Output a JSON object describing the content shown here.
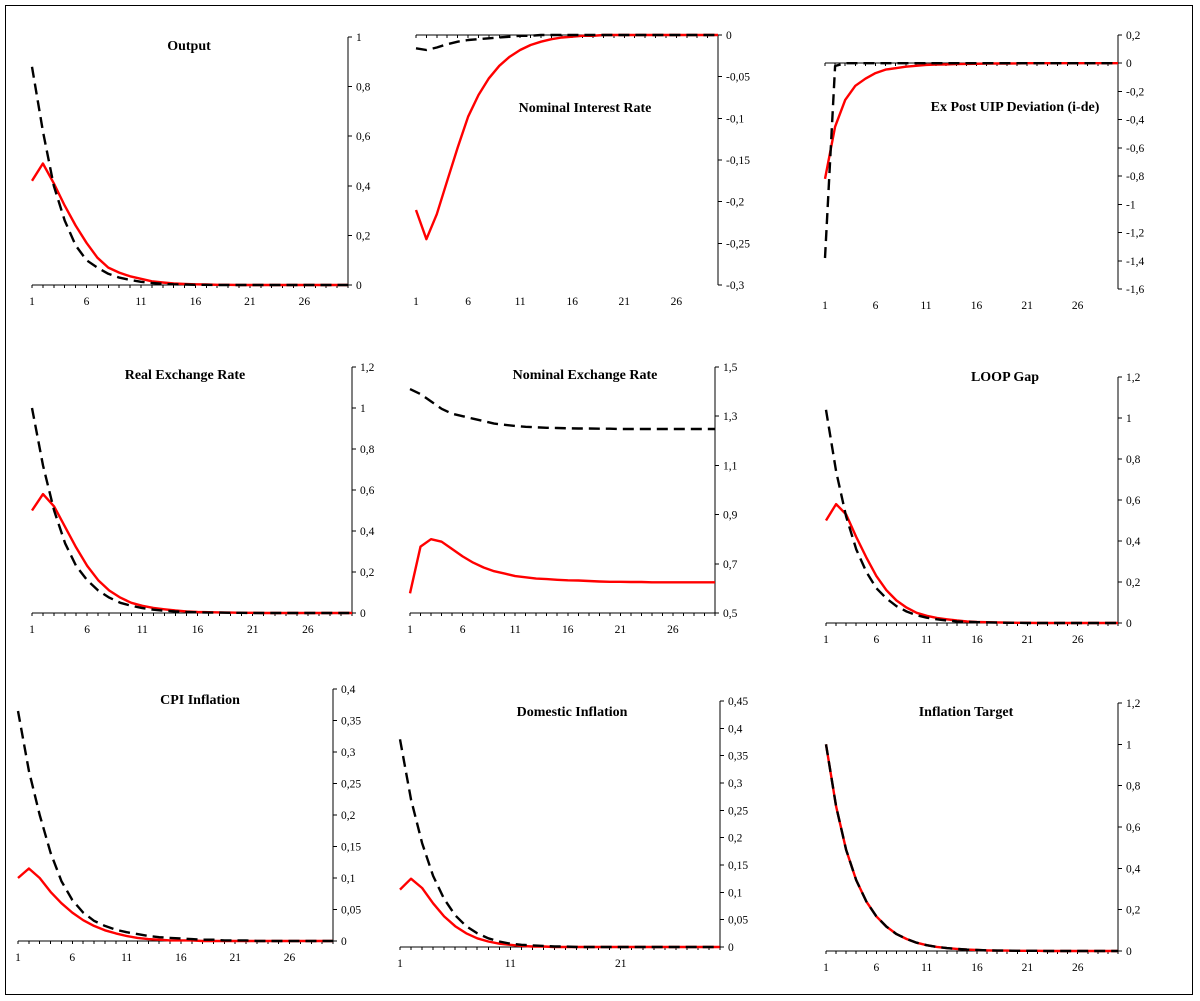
{
  "colors": {
    "series_a": "#ff0000",
    "series_b": "#000000"
  },
  "chart_data": [
    {
      "type": "line",
      "title": "Output",
      "x": [
        1,
        2,
        3,
        4,
        5,
        6,
        7,
        8,
        9,
        10,
        11,
        12,
        13,
        14,
        15,
        16,
        17,
        18,
        19,
        20,
        21,
        22,
        23,
        24,
        25,
        26,
        27,
        28,
        29,
        30
      ],
      "xticks": [
        1,
        6,
        11,
        16,
        21,
        26
      ],
      "ylim": [
        0,
        1
      ],
      "yticks": [
        "0",
        "0,2",
        "0,4",
        "0,6",
        "0,8",
        "1"
      ],
      "ytick_values": [
        0,
        0.2,
        0.4,
        0.6,
        0.8,
        1
      ],
      "series": [
        {
          "style": "solid",
          "color": "#ff0000",
          "values": [
            0.42,
            0.49,
            0.41,
            0.32,
            0.24,
            0.17,
            0.11,
            0.07,
            0.05,
            0.035,
            0.025,
            0.015,
            0.01,
            0.006,
            0.004,
            0.003,
            0.002,
            0.001,
            0.001,
            0,
            0,
            0,
            0,
            0,
            0,
            0,
            0,
            0,
            0,
            0
          ]
        },
        {
          "style": "dashed",
          "color": "#000000",
          "values": [
            0.88,
            0.62,
            0.4,
            0.26,
            0.16,
            0.1,
            0.07,
            0.045,
            0.03,
            0.02,
            0.013,
            0.008,
            0.005,
            0.003,
            0.002,
            0.001,
            0.001,
            0,
            0,
            0,
            0,
            0,
            0,
            0,
            0,
            0,
            0,
            0,
            0,
            0
          ]
        }
      ]
    },
    {
      "type": "line",
      "title": "Nominal Interest Rate",
      "x": [
        1,
        2,
        3,
        4,
        5,
        6,
        7,
        8,
        9,
        10,
        11,
        12,
        13,
        14,
        15,
        16,
        17,
        18,
        19,
        20,
        21,
        22,
        23,
        24,
        25,
        26,
        27,
        28,
        29,
        30
      ],
      "xticks": [
        1,
        6,
        11,
        16,
        21,
        26
      ],
      "ylim": [
        -0.3,
        0
      ],
      "yticks": [
        "-0,3",
        "-0,25",
        "-0,2",
        "-0,15",
        "-0,1",
        "-0,05",
        "0"
      ],
      "ytick_values": [
        -0.3,
        -0.25,
        -0.2,
        -0.15,
        -0.1,
        -0.05,
        0
      ],
      "series": [
        {
          "style": "solid",
          "color": "#ff0000",
          "values": [
            -0.21,
            -0.245,
            -0.215,
            -0.175,
            -0.135,
            -0.098,
            -0.072,
            -0.052,
            -0.037,
            -0.026,
            -0.018,
            -0.012,
            -0.008,
            -0.005,
            -0.003,
            -0.002,
            -0.001,
            -0.001,
            0,
            0,
            0,
            0,
            0,
            0,
            0,
            0,
            0,
            0,
            0,
            0
          ]
        },
        {
          "style": "dashed",
          "color": "#000000",
          "values": [
            -0.016,
            -0.018,
            -0.015,
            -0.011,
            -0.008,
            -0.006,
            -0.005,
            -0.004,
            -0.003,
            -0.002,
            -0.001,
            -0.001,
            0,
            0,
            0,
            0,
            0,
            0,
            0,
            0,
            0,
            0,
            0,
            0,
            0,
            0,
            0,
            0,
            0,
            0
          ]
        }
      ]
    },
    {
      "type": "line",
      "title": "Ex Post UIP Deviation (i-de)",
      "x": [
        1,
        2,
        3,
        4,
        5,
        6,
        7,
        8,
        9,
        10,
        11,
        12,
        13,
        14,
        15,
        16,
        17,
        18,
        19,
        20,
        21,
        22,
        23,
        24,
        25,
        26,
        27,
        28,
        29,
        30
      ],
      "xticks": [
        1,
        6,
        11,
        16,
        21,
        26
      ],
      "ylim": [
        -1.6,
        0.2
      ],
      "yticks": [
        "-1,6",
        "-1,4",
        "-1,2",
        "-1",
        "-0,8",
        "-0,6",
        "-0,4",
        "-0,2",
        "0",
        "0,2"
      ],
      "ytick_values": [
        -1.6,
        -1.4,
        -1.2,
        -1,
        -0.8,
        -0.6,
        -0.4,
        -0.2,
        0,
        0.2
      ],
      "series": [
        {
          "style": "solid",
          "color": "#ff0000",
          "values": [
            -0.82,
            -0.45,
            -0.26,
            -0.16,
            -0.11,
            -0.07,
            -0.045,
            -0.035,
            -0.025,
            -0.018,
            -0.012,
            -0.01,
            -0.008,
            -0.006,
            -0.005,
            -0.004,
            -0.003,
            -0.002,
            -0.002,
            -0.001,
            0,
            0,
            0,
            0,
            0,
            0,
            0,
            0,
            0,
            0
          ]
        },
        {
          "style": "dashed",
          "color": "#000000",
          "values": [
            -1.38,
            -0.02,
            0,
            0,
            0,
            0,
            0,
            0,
            0,
            0,
            0,
            0,
            0,
            0,
            0,
            0,
            0,
            0,
            0,
            0,
            0,
            0,
            0,
            0,
            0,
            0,
            0,
            0,
            0,
            0
          ]
        }
      ]
    },
    {
      "type": "line",
      "title": "Real Exchange Rate",
      "x": [
        1,
        2,
        3,
        4,
        5,
        6,
        7,
        8,
        9,
        10,
        11,
        12,
        13,
        14,
        15,
        16,
        17,
        18,
        19,
        20,
        21,
        22,
        23,
        24,
        25,
        26,
        27,
        28,
        29,
        30
      ],
      "xticks": [
        1,
        6,
        11,
        16,
        21,
        26
      ],
      "ylim": [
        0,
        1.2
      ],
      "yticks": [
        "0",
        "0,2",
        "0,4",
        "0,6",
        "0,8",
        "1",
        "1,2"
      ],
      "ytick_values": [
        0,
        0.2,
        0.4,
        0.6,
        0.8,
        1,
        1.2
      ],
      "series": [
        {
          "style": "solid",
          "color": "#ff0000",
          "values": [
            0.5,
            0.58,
            0.52,
            0.42,
            0.32,
            0.23,
            0.16,
            0.11,
            0.075,
            0.05,
            0.035,
            0.025,
            0.018,
            0.012,
            0.008,
            0.005,
            0.004,
            0.003,
            0.002,
            0.001,
            0.001,
            0,
            0,
            0,
            0,
            0,
            0,
            0,
            0,
            0
          ]
        },
        {
          "style": "dashed",
          "color": "#000000",
          "values": [
            1,
            0.72,
            0.5,
            0.34,
            0.23,
            0.16,
            0.11,
            0.075,
            0.05,
            0.035,
            0.024,
            0.016,
            0.011,
            0.008,
            0.005,
            0.003,
            0.002,
            0.002,
            0.001,
            0.001,
            0,
            0,
            0,
            0,
            0,
            0,
            0,
            0,
            0,
            0
          ]
        }
      ]
    },
    {
      "type": "line",
      "title": "Nominal Exchange Rate",
      "x": [
        1,
        2,
        3,
        4,
        5,
        6,
        7,
        8,
        9,
        10,
        11,
        12,
        13,
        14,
        15,
        16,
        17,
        18,
        19,
        20,
        21,
        22,
        23,
        24,
        25,
        26,
        27,
        28,
        29,
        30
      ],
      "xticks": [
        1,
        6,
        11,
        16,
        21,
        26
      ],
      "ylim": [
        0.5,
        1.5
      ],
      "yticks": [
        "0,5",
        "0,7",
        "0,9",
        "1,1",
        "1,3",
        "1,5"
      ],
      "ytick_values": [
        0.5,
        0.7,
        0.9,
        1.1,
        1.3,
        1.5
      ],
      "series": [
        {
          "style": "solid",
          "color": "#ff0000",
          "values": [
            0.58,
            0.77,
            0.8,
            0.79,
            0.76,
            0.73,
            0.705,
            0.685,
            0.67,
            0.66,
            0.65,
            0.645,
            0.64,
            0.638,
            0.635,
            0.633,
            0.632,
            0.63,
            0.628,
            0.627,
            0.627,
            0.626,
            0.626,
            0.625,
            0.625,
            0.625,
            0.625,
            0.625,
            0.625,
            0.625
          ]
        },
        {
          "style": "dashed",
          "color": "#000000",
          "values": [
            1.41,
            1.39,
            1.36,
            1.33,
            1.31,
            1.3,
            1.29,
            1.28,
            1.27,
            1.265,
            1.26,
            1.257,
            1.255,
            1.253,
            1.252,
            1.251,
            1.25,
            1.25,
            1.249,
            1.249,
            1.248,
            1.248,
            1.248,
            1.248,
            1.248,
            1.248,
            1.248,
            1.248,
            1.248,
            1.248
          ]
        }
      ]
    },
    {
      "type": "line",
      "title": "LOOP Gap",
      "x": [
        1,
        2,
        3,
        4,
        5,
        6,
        7,
        8,
        9,
        10,
        11,
        12,
        13,
        14,
        15,
        16,
        17,
        18,
        19,
        20,
        21,
        22,
        23,
        24,
        25,
        26,
        27,
        28,
        29,
        30
      ],
      "xticks": [
        1,
        6,
        11,
        16,
        21,
        26
      ],
      "ylim": [
        0,
        1.2
      ],
      "yticks": [
        "0",
        "0,2",
        "0,4",
        "0,6",
        "0,8",
        "1",
        "1,2"
      ],
      "ytick_values": [
        0,
        0.2,
        0.4,
        0.6,
        0.8,
        1,
        1.2
      ],
      "series": [
        {
          "style": "solid",
          "color": "#ff0000",
          "values": [
            0.5,
            0.58,
            0.53,
            0.42,
            0.32,
            0.23,
            0.16,
            0.11,
            0.075,
            0.05,
            0.035,
            0.025,
            0.018,
            0.012,
            0.008,
            0.005,
            0.004,
            0.003,
            0.002,
            0.001,
            0.001,
            0,
            0,
            0,
            0,
            0,
            0,
            0,
            0,
            0
          ]
        },
        {
          "style": "dashed",
          "color": "#000000",
          "values": [
            1.04,
            0.74,
            0.52,
            0.36,
            0.25,
            0.17,
            0.12,
            0.082,
            0.056,
            0.038,
            0.026,
            0.018,
            0.012,
            0.008,
            0.006,
            0.004,
            0.003,
            0.002,
            0.001,
            0.001,
            0,
            0,
            0,
            0,
            0,
            0,
            0,
            0,
            0,
            0
          ]
        }
      ]
    },
    {
      "type": "line",
      "title": "CPI Inflation",
      "x": [
        1,
        2,
        3,
        4,
        5,
        6,
        7,
        8,
        9,
        10,
        11,
        12,
        13,
        14,
        15,
        16,
        17,
        18,
        19,
        20,
        21,
        22,
        23,
        24,
        25,
        26,
        27,
        28,
        29,
        30
      ],
      "xticks": [
        1,
        6,
        11,
        16,
        21,
        26
      ],
      "ylim": [
        0,
        0.4
      ],
      "yticks": [
        "0",
        "0,05",
        "0,1",
        "0,15",
        "0,2",
        "0,25",
        "0,3",
        "0,35",
        "0,4"
      ],
      "ytick_values": [
        0,
        0.05,
        0.1,
        0.15,
        0.2,
        0.25,
        0.3,
        0.35,
        0.4
      ],
      "series": [
        {
          "style": "solid",
          "color": "#ff0000",
          "values": [
            0.1,
            0.115,
            0.1,
            0.078,
            0.06,
            0.045,
            0.033,
            0.024,
            0.017,
            0.012,
            0.008,
            0.005,
            0.003,
            0.002,
            0.001,
            0.001,
            0.001,
            0,
            0,
            0,
            0,
            0,
            0,
            0,
            0,
            0,
            0,
            0,
            0,
            0
          ]
        },
        {
          "style": "dashed",
          "color": "#000000",
          "values": [
            0.365,
            0.27,
            0.2,
            0.14,
            0.095,
            0.065,
            0.045,
            0.032,
            0.024,
            0.018,
            0.014,
            0.011,
            0.008,
            0.006,
            0.005,
            0.004,
            0.003,
            0.002,
            0.002,
            0.001,
            0.001,
            0.001,
            0,
            0,
            0,
            0,
            0,
            0,
            0,
            0
          ]
        }
      ]
    },
    {
      "type": "line",
      "title": "Domestic Inflation",
      "x": [
        1,
        2,
        3,
        4,
        5,
        6,
        7,
        8,
        9,
        10,
        11,
        12,
        13,
        14,
        15,
        16,
        17,
        18,
        19,
        20,
        21,
        22,
        23,
        24,
        25,
        26,
        27,
        28,
        29,
        30
      ],
      "xticks": [
        1,
        11,
        21
      ],
      "ylim": [
        0,
        0.45
      ],
      "yticks": [
        "0",
        "0,05",
        "0,1",
        "0,15",
        "0,2",
        "0,25",
        "0,3",
        "0,35",
        "0,4",
        "0,45"
      ],
      "ytick_values": [
        0,
        0.05,
        0.1,
        0.15,
        0.2,
        0.25,
        0.3,
        0.35,
        0.4,
        0.45
      ],
      "series": [
        {
          "style": "solid",
          "color": "#ff0000",
          "values": [
            0.105,
            0.125,
            0.108,
            0.08,
            0.056,
            0.038,
            0.025,
            0.016,
            0.01,
            0.006,
            0.004,
            0.002,
            0.001,
            0.001,
            0,
            0,
            0,
            0,
            0,
            0,
            0,
            0,
            0,
            0,
            0,
            0,
            0,
            0,
            0,
            0
          ]
        },
        {
          "style": "dashed",
          "color": "#000000",
          "values": [
            0.38,
            0.27,
            0.19,
            0.13,
            0.088,
            0.058,
            0.038,
            0.025,
            0.016,
            0.01,
            0.006,
            0.004,
            0.003,
            0.002,
            0.001,
            0.001,
            0,
            0,
            0,
            0,
            0,
            0,
            0,
            0,
            0,
            0,
            0,
            0,
            0,
            0
          ]
        }
      ]
    },
    {
      "type": "line",
      "title": "Inflation Target",
      "x": [
        1,
        2,
        3,
        4,
        5,
        6,
        7,
        8,
        9,
        10,
        11,
        12,
        13,
        14,
        15,
        16,
        17,
        18,
        19,
        20,
        21,
        22,
        23,
        24,
        25,
        26,
        27,
        28,
        29,
        30
      ],
      "xticks": [
        1,
        6,
        11,
        16,
        21,
        26
      ],
      "ylim": [
        0,
        1.2
      ],
      "yticks": [
        "0",
        "0,2",
        "0,4",
        "0,6",
        "0,8",
        "1",
        "1,2"
      ],
      "ytick_values": [
        0,
        0.2,
        0.4,
        0.6,
        0.8,
        1,
        1.2
      ],
      "series": [
        {
          "style": "solid",
          "color": "#ff0000",
          "values": [
            1,
            0.7,
            0.49,
            0.343,
            0.24,
            0.168,
            0.118,
            0.082,
            0.058,
            0.04,
            0.028,
            0.02,
            0.014,
            0.01,
            0.007,
            0.005,
            0.003,
            0.002,
            0.002,
            0.001,
            0.001,
            0.001,
            0,
            0,
            0,
            0,
            0,
            0,
            0,
            0
          ]
        },
        {
          "style": "dashed",
          "color": "#000000",
          "values": [
            1,
            0.7,
            0.49,
            0.343,
            0.24,
            0.168,
            0.118,
            0.082,
            0.058,
            0.04,
            0.028,
            0.02,
            0.014,
            0.01,
            0.007,
            0.005,
            0.003,
            0.002,
            0.002,
            0.001,
            0.001,
            0.001,
            0,
            0,
            0,
            0,
            0,
            0,
            0,
            0
          ]
        }
      ]
    }
  ]
}
